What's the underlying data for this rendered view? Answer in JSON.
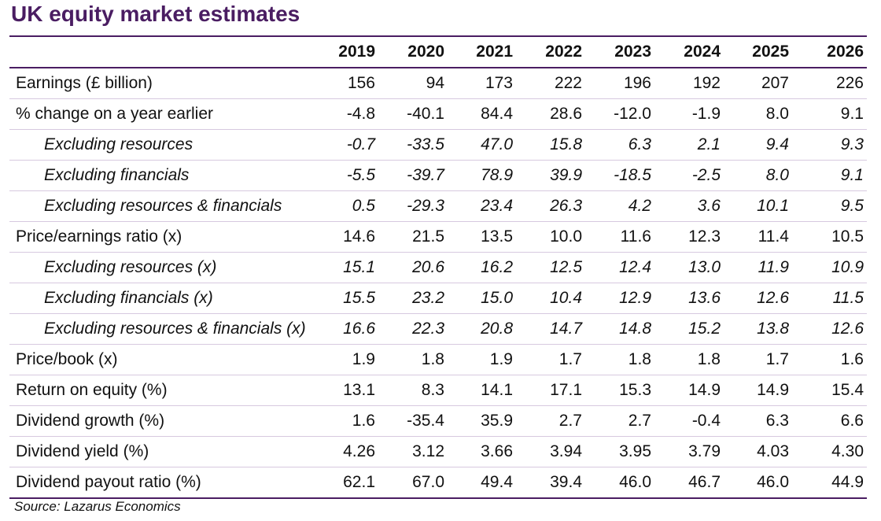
{
  "title": "UK equity market estimates",
  "years": [
    "2019",
    "2020",
    "2021",
    "2022",
    "2023",
    "2024",
    "2025",
    "2026"
  ],
  "rows": [
    {
      "label": "Earnings (£ billion)",
      "sub": false,
      "values": [
        "156",
        "94",
        "173",
        "222",
        "196",
        "192",
        "207",
        "226"
      ]
    },
    {
      "label": "% change on a year earlier",
      "sub": false,
      "values": [
        "-4.8",
        "-40.1",
        "84.4",
        "28.6",
        "-12.0",
        "-1.9",
        "8.0",
        "9.1"
      ]
    },
    {
      "label": "Excluding resources",
      "sub": true,
      "values": [
        "-0.7",
        "-33.5",
        "47.0",
        "15.8",
        "6.3",
        "2.1",
        "9.4",
        "9.3"
      ]
    },
    {
      "label": "Excluding financials",
      "sub": true,
      "values": [
        "-5.5",
        "-39.7",
        "78.9",
        "39.9",
        "-18.5",
        "-2.5",
        "8.0",
        "9.1"
      ]
    },
    {
      "label": "Excluding resources & financials",
      "sub": true,
      "values": [
        "0.5",
        "-29.3",
        "23.4",
        "26.3",
        "4.2",
        "3.6",
        "10.1",
        "9.5"
      ]
    },
    {
      "label": "Price/earnings ratio (x)",
      "sub": false,
      "values": [
        "14.6",
        "21.5",
        "13.5",
        "10.0",
        "11.6",
        "12.3",
        "11.4",
        "10.5"
      ]
    },
    {
      "label": "Excluding resources (x)",
      "sub": true,
      "values": [
        "15.1",
        "20.6",
        "16.2",
        "12.5",
        "12.4",
        "13.0",
        "11.9",
        "10.9"
      ]
    },
    {
      "label": "Excluding financials (x)",
      "sub": true,
      "values": [
        "15.5",
        "23.2",
        "15.0",
        "10.4",
        "12.9",
        "13.6",
        "12.6",
        "11.5"
      ]
    },
    {
      "label": "Excluding resources & financials (x)",
      "sub": true,
      "values": [
        "16.6",
        "22.3",
        "20.8",
        "14.7",
        "14.8",
        "15.2",
        "13.8",
        "12.6"
      ]
    },
    {
      "label": "Price/book (x)",
      "sub": false,
      "values": [
        "1.9",
        "1.8",
        "1.9",
        "1.7",
        "1.8",
        "1.8",
        "1.7",
        "1.6"
      ]
    },
    {
      "label": "Return on equity (%)",
      "sub": false,
      "values": [
        "13.1",
        "8.3",
        "14.1",
        "17.1",
        "15.3",
        "14.9",
        "14.9",
        "15.4"
      ]
    },
    {
      "label": "Dividend growth (%)",
      "sub": false,
      "values": [
        "1.6",
        "-35.4",
        "35.9",
        "2.7",
        "2.7",
        "-0.4",
        "6.3",
        "6.6"
      ]
    },
    {
      "label": "Dividend yield (%)",
      "sub": false,
      "values": [
        "4.26",
        "3.12",
        "3.66",
        "3.94",
        "3.95",
        "3.79",
        "4.03",
        "4.30"
      ]
    },
    {
      "label": "Dividend payout ratio (%)",
      "sub": false,
      "values": [
        "62.1",
        "67.0",
        "49.4",
        "39.4",
        "46.0",
        "46.7",
        "46.0",
        "44.9"
      ]
    }
  ],
  "source": "Source: Lazarus Economics",
  "colors": {
    "accent": "#4a1d62",
    "row_rule": "#d7c9df"
  }
}
